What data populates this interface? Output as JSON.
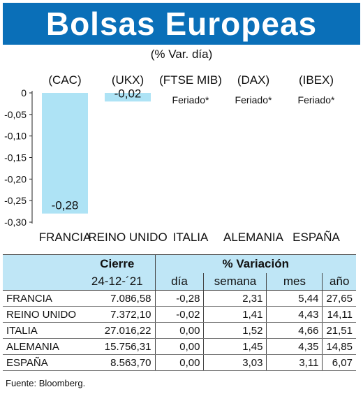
{
  "header": {
    "title": "Bolsas Europeas"
  },
  "subtitle": "(% Var. día)",
  "chart_data": {
    "type": "bar",
    "indices": [
      "(CAC)",
      "(UKX)",
      "(FTSE MIB)",
      "(DAX)",
      "(IBEX)"
    ],
    "categories": [
      "FRANCIA",
      "REINO UNIDO",
      "ITALIA",
      "ALEMANIA",
      "ESPAÑA"
    ],
    "values": [
      -0.28,
      -0.02,
      0.0,
      0.0,
      0.0
    ],
    "value_labels": [
      "-0,28",
      "-0,02",
      "Feriado*",
      "Feriado*",
      "Feriado*"
    ],
    "yticks": [
      "0",
      "-0,05",
      "-0,10",
      "-0,15",
      "-0,20",
      "-0,25",
      "-0,30"
    ],
    "ylim": [
      -0.3,
      0
    ],
    "bar_color": "#aee3f5"
  },
  "table": {
    "header1": {
      "cierre": "Cierre",
      "variacion": "% Variación"
    },
    "header2": {
      "date": "24-12-´21",
      "dia": "día",
      "semana": "semana",
      "mes": "mes",
      "ano": "año"
    },
    "rows": [
      {
        "name": "FRANCIA",
        "cierre": "7.086,58",
        "dia": "-0,28",
        "semana": "2,31",
        "mes": "5,44",
        "ano": "27,65"
      },
      {
        "name": "REINO UNIDO",
        "cierre": "7.372,10",
        "dia": "-0,02",
        "semana": "1,41",
        "mes": "4,43",
        "ano": "14,11"
      },
      {
        "name": "ITALIA",
        "cierre": "27.016,22",
        "dia": "0,00",
        "semana": "1,52",
        "mes": "4,66",
        "ano": "21,51"
      },
      {
        "name": "ALEMANIA",
        "cierre": "15.756,31",
        "dia": "0,00",
        "semana": "1,45",
        "mes": "4,35",
        "ano": "14,85"
      },
      {
        "name": "ESPAÑA",
        "cierre": "8.563,70",
        "dia": "0,00",
        "semana": "3,03",
        "mes": "3,11",
        "ano": "6,07"
      }
    ]
  },
  "source": "Fuente: Bloomberg."
}
